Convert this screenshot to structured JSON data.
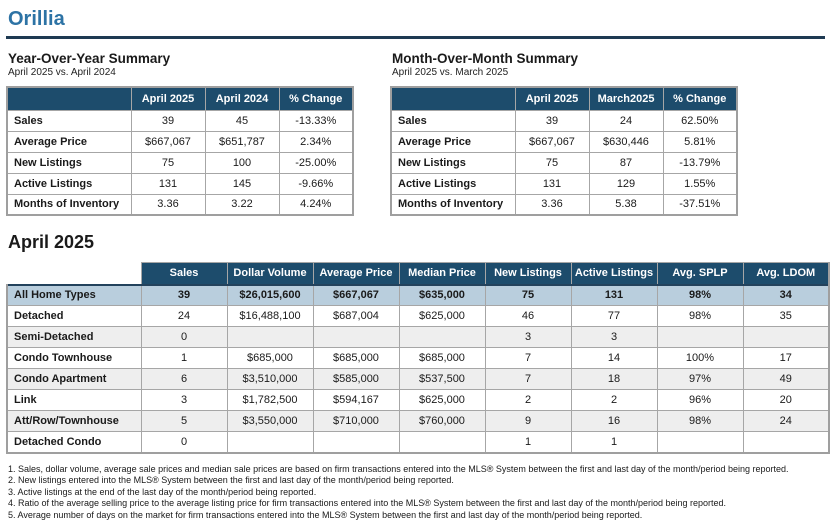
{
  "page": {
    "title": "Orillia"
  },
  "theme": {
    "accent": "#2d73a5",
    "rule": "#1e3a52",
    "header_bg": "#1d4c6c",
    "header_text": "#ffffff",
    "highlight_bg": "#b9cedd",
    "alt_row_bg": "#eeeeee",
    "border": "#a6a6a6"
  },
  "yoy": {
    "title": "Year-Over-Year Summary",
    "subtitle": "April 2025 vs. April 2024",
    "columns": [
      "",
      "April 2025",
      "April 2024",
      "% Change"
    ],
    "rows": [
      {
        "label": "Sales",
        "values": [
          "39",
          "45",
          "-13.33%"
        ]
      },
      {
        "label": "Average Price",
        "values": [
          "$667,067",
          "$651,787",
          "2.34%"
        ]
      },
      {
        "label": "New Listings",
        "values": [
          "75",
          "100",
          "-25.00%"
        ]
      },
      {
        "label": "Active Listings",
        "values": [
          "131",
          "145",
          "-9.66%"
        ]
      },
      {
        "label": "Months of Inventory",
        "values": [
          "3.36",
          "3.22",
          "4.24%"
        ]
      }
    ]
  },
  "mom": {
    "title": "Month-Over-Month Summary",
    "subtitle": "April 2025 vs. March 2025",
    "columns": [
      "",
      "April 2025",
      "March2025",
      "% Change"
    ],
    "rows": [
      {
        "label": "Sales",
        "values": [
          "39",
          "24",
          "62.50%"
        ]
      },
      {
        "label": "Average Price",
        "values": [
          "$667,067",
          "$630,446",
          "5.81%"
        ]
      },
      {
        "label": "New Listings",
        "values": [
          "75",
          "87",
          "-13.79%"
        ]
      },
      {
        "label": "Active Listings",
        "values": [
          "131",
          "129",
          "1.55%"
        ]
      },
      {
        "label": "Months of Inventory",
        "values": [
          "3.36",
          "5.38",
          "-37.51%"
        ]
      }
    ]
  },
  "detail": {
    "title": "April 2025",
    "columns": [
      "Sales",
      "Dollar Volume",
      "Average Price",
      "Median Price",
      "New Listings",
      "Active Listings",
      "Avg. SPLP",
      "Avg. LDOM"
    ],
    "rows": [
      {
        "label": "All Home Types",
        "values": [
          "39",
          "$26,015,600",
          "$667,067",
          "$635,000",
          "75",
          "131",
          "98%",
          "34"
        ]
      },
      {
        "label": "Detached",
        "values": [
          "24",
          "$16,488,100",
          "$687,004",
          "$625,000",
          "46",
          "77",
          "98%",
          "35"
        ]
      },
      {
        "label": "Semi-Detached",
        "values": [
          "0",
          "",
          "",
          "",
          "3",
          "3",
          "",
          ""
        ]
      },
      {
        "label": "Condo Townhouse",
        "values": [
          "1",
          "$685,000",
          "$685,000",
          "$685,000",
          "7",
          "14",
          "100%",
          "17"
        ]
      },
      {
        "label": "Condo Apartment",
        "values": [
          "6",
          "$3,510,000",
          "$585,000",
          "$537,500",
          "7",
          "18",
          "97%",
          "49"
        ]
      },
      {
        "label": "Link",
        "values": [
          "3",
          "$1,782,500",
          "$594,167",
          "$625,000",
          "2",
          "2",
          "96%",
          "20"
        ]
      },
      {
        "label": "Att/Row/Townhouse",
        "values": [
          "5",
          "$3,550,000",
          "$710,000",
          "$760,000",
          "9",
          "16",
          "98%",
          "24"
        ]
      },
      {
        "label": "Detached Condo",
        "values": [
          "0",
          "",
          "",
          "",
          "1",
          "1",
          "",
          ""
        ]
      }
    ]
  },
  "footnotes": [
    "1. Sales, dollar volume, average sale prices and median sale prices are based on firm transactions entered into the MLS® System between the first and last day of the month/period being reported.",
    "2. New listings entered into the MLS® System between the first and last day of the month/period being reported.",
    "3. Active listings at the end of the last day of the month/period being reported.",
    "4. Ratio of the average selling price to the average listing price for firm transactions entered into the MLS® System between the first and last day of the month/period being reported.",
    "5. Average number of days on the market for firm transactions entered into the MLS® System between the first and last day of the month/period being reported."
  ]
}
